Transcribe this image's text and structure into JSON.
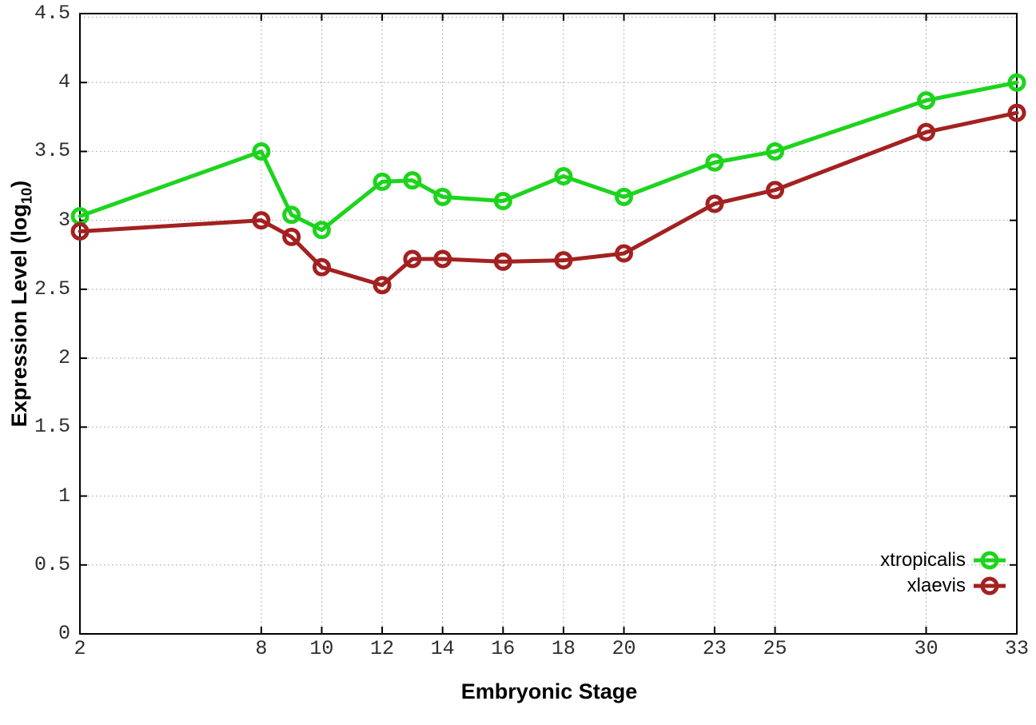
{
  "chart_data": {
    "type": "line",
    "xlabel": "Embryonic Stage",
    "ylabel": "Expression Level (log10)",
    "ylabel_parts": {
      "pre": "Expression Level (log",
      "sub": "10",
      "post": ")"
    },
    "x": [
      2,
      8,
      9,
      10,
      12,
      13,
      14,
      16,
      18,
      20,
      23,
      25,
      30,
      33
    ],
    "series": [
      {
        "name": "xtropicalis",
        "color": "#1dd41d",
        "values": [
          3.03,
          3.5,
          3.04,
          2.93,
          3.28,
          3.29,
          3.17,
          3.14,
          3.32,
          3.17,
          3.42,
          3.5,
          3.87,
          4.0
        ]
      },
      {
        "name": "xlaevis",
        "color": "#a32121",
        "values": [
          2.92,
          3.0,
          2.88,
          2.66,
          2.53,
          2.72,
          2.72,
          2.7,
          2.71,
          2.76,
          3.12,
          3.22,
          3.64,
          3.78
        ]
      }
    ],
    "xticks": [
      2,
      8,
      10,
      12,
      14,
      16,
      18,
      20,
      23,
      25,
      30,
      33
    ],
    "yticks": [
      0,
      0.5,
      1,
      1.5,
      2,
      2.5,
      3,
      3.5,
      4,
      4.5
    ],
    "xlim": [
      2,
      33
    ],
    "ylim": [
      0,
      4.5
    ],
    "grid": true,
    "legend_position": "inside-bottom-right"
  },
  "colors": {
    "background": "#ffffff",
    "grid": "#a9a9a9",
    "axis": "#000000",
    "tick_text": "#2e2e2e"
  }
}
